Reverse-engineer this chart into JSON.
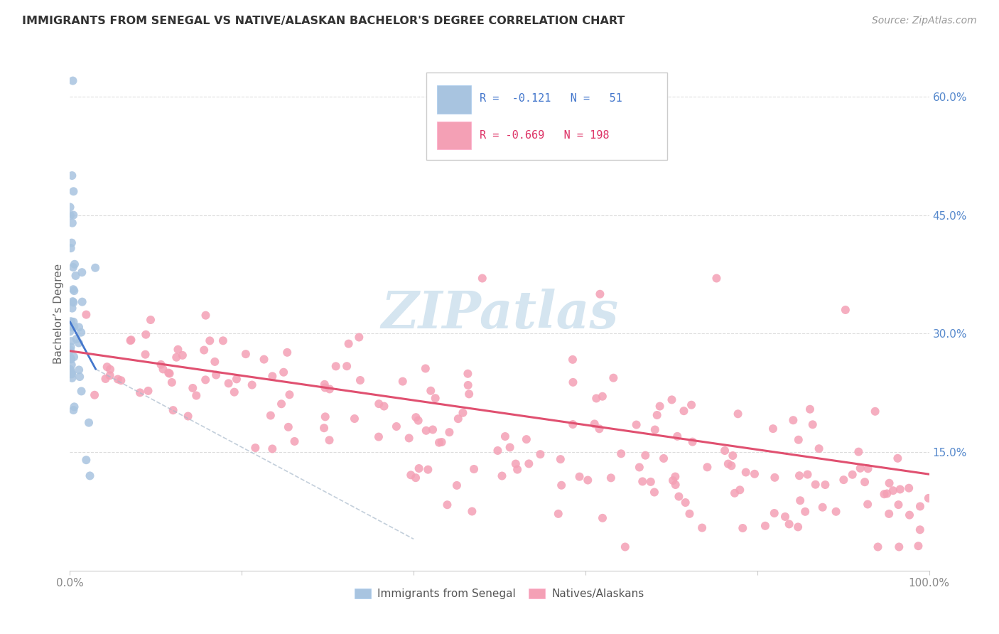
{
  "title": "IMMIGRANTS FROM SENEGAL VS NATIVE/ALASKAN BACHELOR'S DEGREE CORRELATION CHART",
  "source": "Source: ZipAtlas.com",
  "ylabel": "Bachelor’s Degree",
  "blue_color": "#a8c4e0",
  "pink_color": "#f4a0b5",
  "blue_line_color": "#4477cc",
  "pink_line_color": "#e05070",
  "blue_dash_color": "#aabbcc",
  "watermark_color": "#d5e5f0",
  "background_color": "#ffffff",
  "grid_color": "#dddddd",
  "title_color": "#333333",
  "right_axis_color": "#5588cc",
  "legend_blue_text_color": "#4477cc",
  "legend_pink_text_color": "#dd3366",
  "tick_color": "#888888"
}
